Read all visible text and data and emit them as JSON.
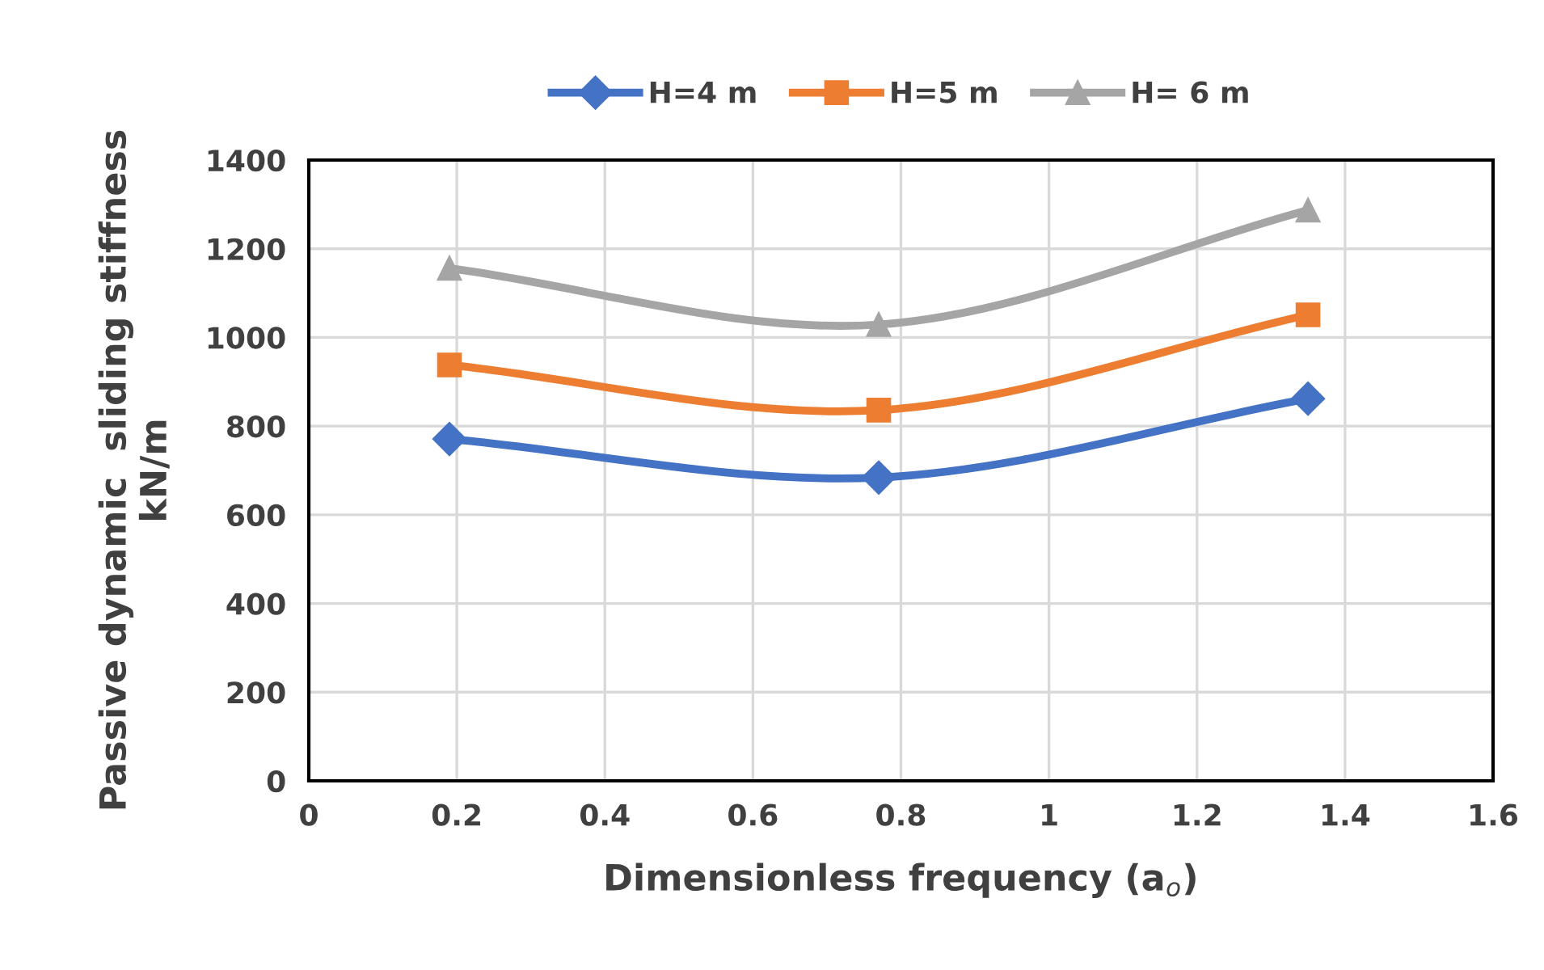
{
  "chart_data": {
    "type": "line",
    "xlabel": "Dimensionless frequency (a$_{o}$)",
    "ylabel": "Passive dynamic  sliding stiffness\nkN/m",
    "x": [
      0.19,
      0.77,
      1.35
    ],
    "series": [
      {
        "name": "H=4 m",
        "color": "#4472c4",
        "values": [
          771,
          684,
          862
        ],
        "marker": "diamond"
      },
      {
        "name": "H=5 m",
        "color": "#ed7d31",
        "values": [
          938,
          836,
          1051
        ],
        "marker": "square"
      },
      {
        "name": "H= 6 m",
        "color": "#a5a5a5",
        "values": [
          1156,
          1029,
          1287
        ],
        "marker": "triangle"
      }
    ],
    "xlim": [
      0,
      1.6
    ],
    "xticks": [
      0,
      0.2,
      0.4,
      0.6,
      0.8,
      1,
      1.2,
      1.4,
      1.6
    ],
    "ylim": [
      0,
      1400
    ],
    "yticks": [
      0,
      200,
      400,
      600,
      800,
      1000,
      1200,
      1400
    ],
    "grid": true,
    "legend": "top",
    "line_style": "solid"
  }
}
